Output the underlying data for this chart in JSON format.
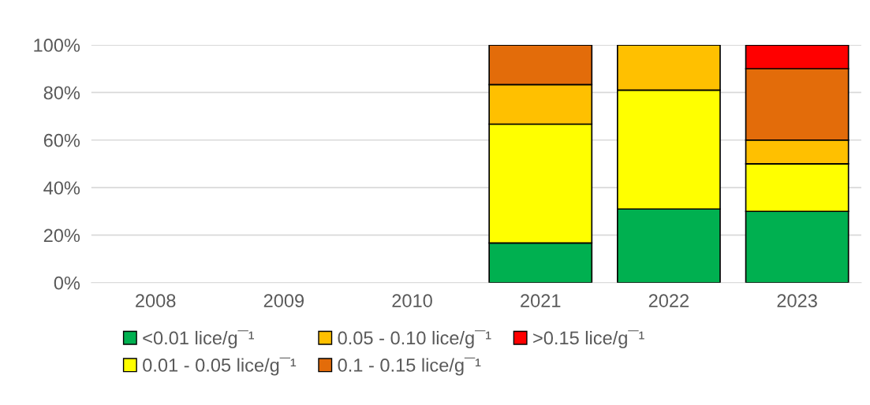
{
  "chart_data": {
    "type": "bar",
    "stacked": true,
    "categories": [
      "2008",
      "2009",
      "2010",
      "2021",
      "2022",
      "2023"
    ],
    "series": [
      {
        "name": "<0.01 lice/g¯¹",
        "color": "#00b050",
        "values": [
          null,
          null,
          null,
          16.7,
          31,
          30
        ]
      },
      {
        "name": "0.01 - 0.05 lice/g¯¹",
        "color": "#ffff00",
        "values": [
          null,
          null,
          null,
          50,
          50,
          20
        ]
      },
      {
        "name": "0.05 - 0.10 lice/g¯¹",
        "color": "#ffc000",
        "values": [
          null,
          null,
          null,
          16.6,
          19,
          10
        ]
      },
      {
        "name": "0.1 - 0.15 lice/g¯¹",
        "color": "#e36c0a",
        "values": [
          null,
          null,
          null,
          16.7,
          0,
          30
        ]
      },
      {
        "name": ">0.15 lice/g¯¹",
        "color": "#ff0000",
        "values": [
          null,
          null,
          null,
          0,
          0,
          10
        ]
      }
    ],
    "ylim": [
      0,
      100
    ],
    "yticks": [
      {
        "value": 0,
        "label": "0%"
      },
      {
        "value": 20,
        "label": "20%"
      },
      {
        "value": 40,
        "label": "40%"
      },
      {
        "value": 60,
        "label": "60%"
      },
      {
        "value": 80,
        "label": "80%"
      },
      {
        "value": 100,
        "label": "100%"
      }
    ],
    "grid": "y",
    "legend": "bottom"
  }
}
